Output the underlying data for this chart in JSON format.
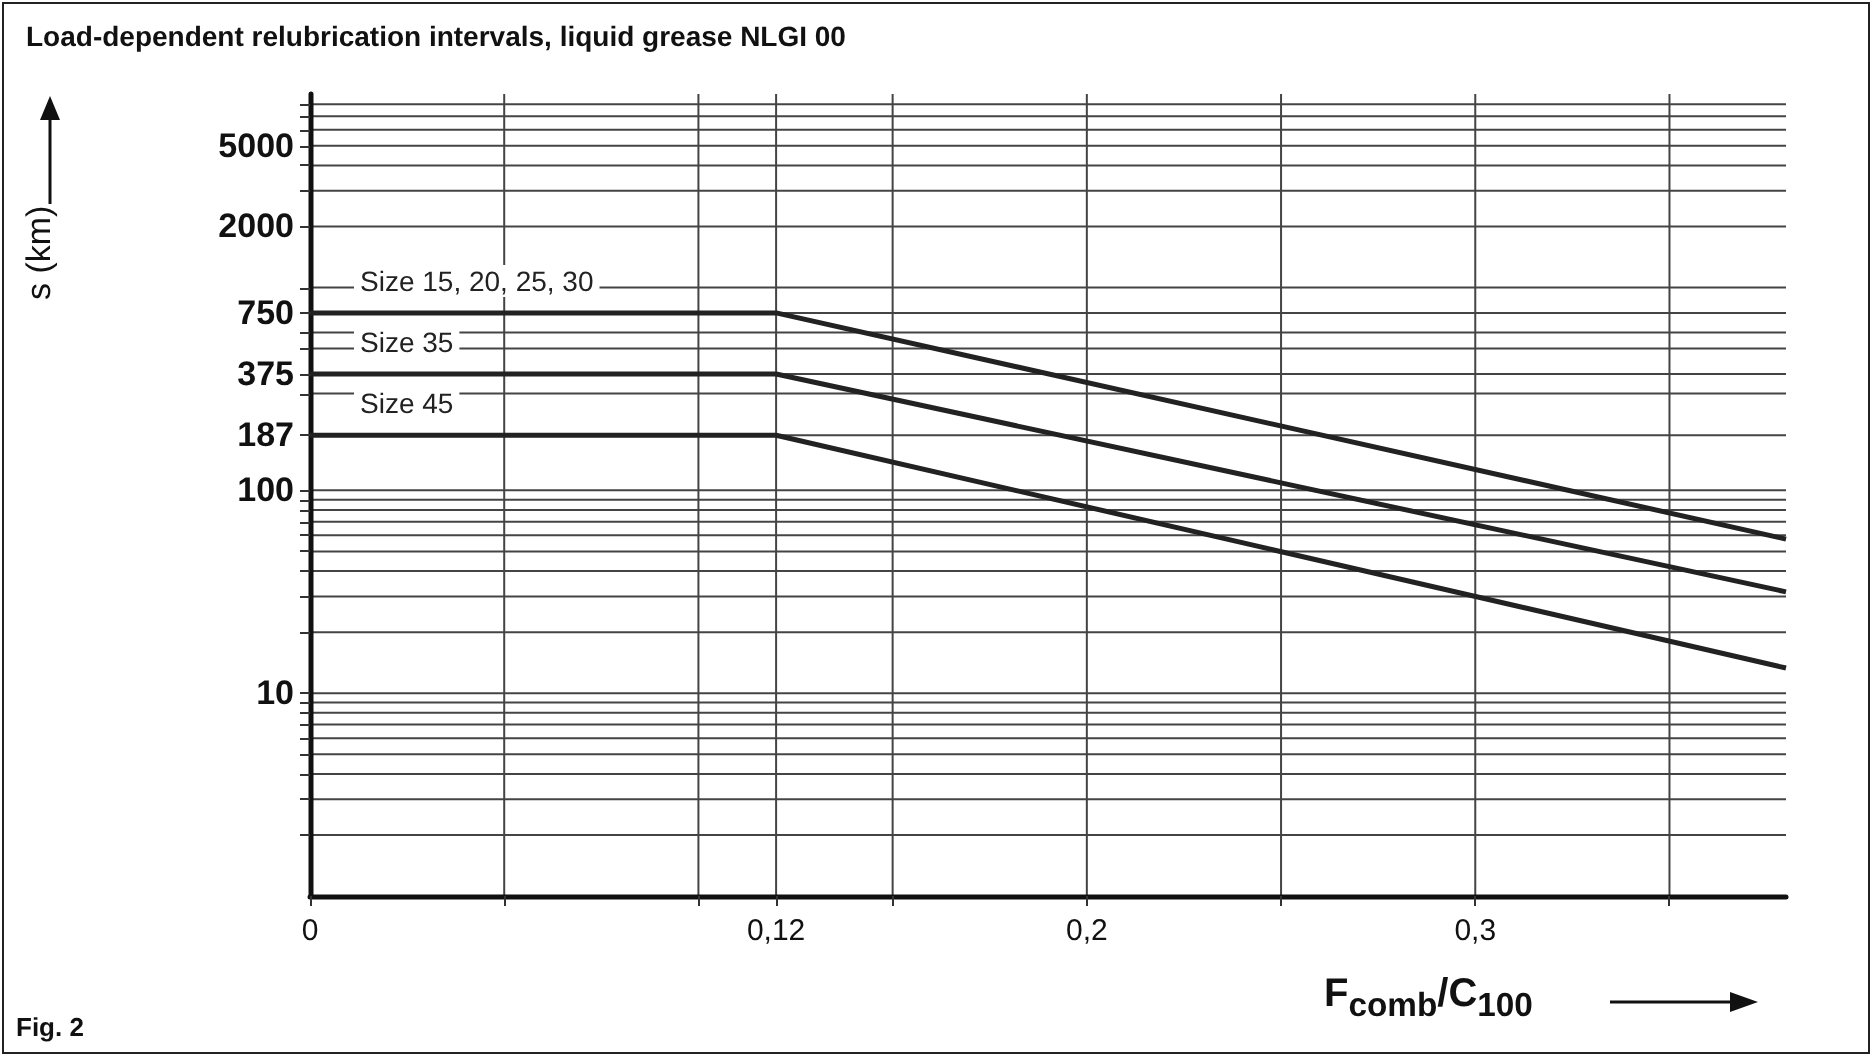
{
  "chart_data": {
    "type": "line",
    "title": "Load-dependent relubrication intervals, liquid grease NLGI 00",
    "xlabel": "F$_{comb}$/C$_{100}$",
    "ylabel": "s (km)",
    "annotations": [
      "Fig. 2"
    ],
    "log": "y",
    "grid": true,
    "legend": false,
    "marker": "none",
    "line_style": "solid",
    "xlim": [
      0,
      0.38
    ],
    "ylim": [
      1,
      9000
    ],
    "xticks": [
      0,
      {
        "value": 0.05,
        "label": null
      },
      {
        "value": 0.1,
        "label": null
      },
      {
        "value": 0.12,
        "label": "0,12"
      },
      {
        "value": 0.15,
        "label": null
      },
      {
        "value": 0.2,
        "label": "0,2"
      },
      {
        "value": 0.25,
        "label": null
      },
      {
        "value": 0.3,
        "label": "0,3"
      },
      {
        "value": 0.35,
        "label": null
      }
    ],
    "yticks": [
      {
        "value": 2,
        "label": null
      },
      {
        "value": 3,
        "label": null
      },
      {
        "value": 4,
        "label": null
      },
      {
        "value": 5,
        "label": null
      },
      {
        "value": 6,
        "label": null
      },
      {
        "value": 7,
        "label": null
      },
      {
        "value": 8,
        "label": null
      },
      {
        "value": 9,
        "label": null
      },
      10,
      {
        "value": 20,
        "label": null
      },
      {
        "value": 30,
        "label": null
      },
      {
        "value": 40,
        "label": null
      },
      {
        "value": 50,
        "label": null
      },
      {
        "value": 60,
        "label": null
      },
      {
        "value": 70,
        "label": null
      },
      {
        "value": 80,
        "label": null
      },
      {
        "value": 90,
        "label": null
      },
      100,
      187,
      {
        "value": 300,
        "label": null
      },
      375,
      {
        "value": 500,
        "label": null
      },
      {
        "value": 600,
        "label": null
      },
      750,
      {
        "value": 1000,
        "label": null
      },
      2000,
      {
        "value": 3000,
        "label": null
      },
      {
        "value": 4000,
        "label": null
      },
      5000,
      {
        "value": 6000,
        "label": null
      },
      {
        "value": 7000,
        "label": null
      },
      {
        "value": 8000,
        "label": null
      }
    ],
    "series": [
      {
        "name": "Size 15, 20, 25, 30",
        "color": "#222222",
        "x": [
          0,
          0.12,
          0.38
        ],
        "values": [
          750,
          750,
          57.5
        ]
      },
      {
        "name": "Size 35",
        "color": "#222222",
        "x": [
          0,
          0.12,
          0.38
        ],
        "values": [
          375,
          375,
          31.6
        ]
      },
      {
        "name": "Size 45",
        "color": "#222222",
        "x": [
          0,
          0.12,
          0.38
        ],
        "values": [
          187,
          187,
          13.3
        ]
      }
    ]
  }
}
